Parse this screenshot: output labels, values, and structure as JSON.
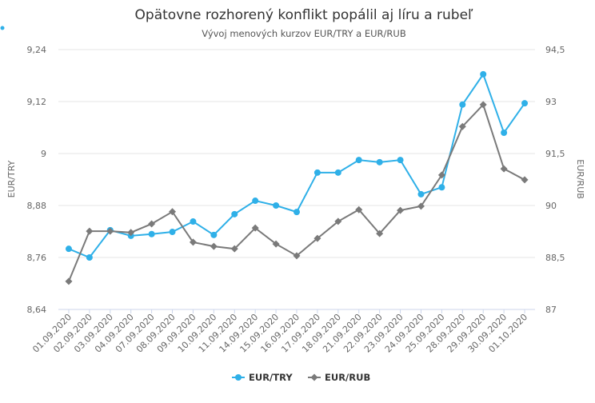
{
  "chart_data": {
    "type": "line",
    "title": "Opätovne rozhorený konflikt popálil aj líru a rubeľ",
    "subtitle": "Vývoj menových kurzov EUR/TRY a EUR/RUB",
    "y_label": "EUR/TRY",
    "y2_label": "EUR/RUB",
    "categories": [
      "01.09.2020",
      "02.09.2020",
      "03.09.2020",
      "04.09.2020",
      "07.09.2020",
      "08.09.2020",
      "09.09.2020",
      "10.09.2020",
      "11.09.2020",
      "14.09.2020",
      "15.09.2020",
      "16.09.2020",
      "17.09.2020",
      "18.09.2020",
      "21.09.2020",
      "22.09.2020",
      "23.09.2020",
      "24.09.2020",
      "25.09.2020",
      "28.09.2020",
      "29.09.2020",
      "30.09.2020",
      "01.10.2020"
    ],
    "series": [
      {
        "name": "EUR/TRY",
        "color": "#2fb0e8",
        "marker": "circle",
        "axis": "y",
        "values": [
          8.78,
          8.76,
          8.823,
          8.81,
          8.814,
          8.819,
          8.843,
          8.812,
          8.86,
          8.891,
          8.88,
          8.865,
          8.956,
          8.956,
          8.985,
          8.98,
          8.985,
          8.906,
          8.922,
          9.113,
          9.183,
          9.048,
          9.116
        ]
      },
      {
        "name": "EUR/RUB",
        "color": "#7a7a7a",
        "marker": "diamond",
        "axis": "y2",
        "values": [
          87.81,
          89.26,
          89.26,
          89.22,
          89.47,
          89.82,
          88.94,
          88.82,
          88.75,
          89.35,
          88.89,
          88.55,
          89.05,
          89.54,
          89.88,
          89.19,
          89.86,
          89.98,
          90.88,
          92.28,
          92.91,
          91.06,
          90.74
        ]
      }
    ],
    "ylim": [
      8.64,
      9.24
    ],
    "yticks": [
      {
        "value": 8.64,
        "label": "8,64"
      },
      {
        "value": 8.76,
        "label": "8,76"
      },
      {
        "value": 8.88,
        "label": "8,88"
      },
      9,
      {
        "value": 9.12,
        "label": "9,12"
      },
      {
        "value": 9.24,
        "label": "9,24"
      }
    ],
    "y2lim": [
      87,
      94.5
    ],
    "y2ticks": [
      87,
      {
        "value": 88.5,
        "label": "88,5"
      },
      90,
      {
        "value": 91.5,
        "label": "91,5"
      },
      93,
      {
        "value": 94.5,
        "label": "94,5"
      }
    ],
    "grid": true,
    "legend": "bottom"
  }
}
